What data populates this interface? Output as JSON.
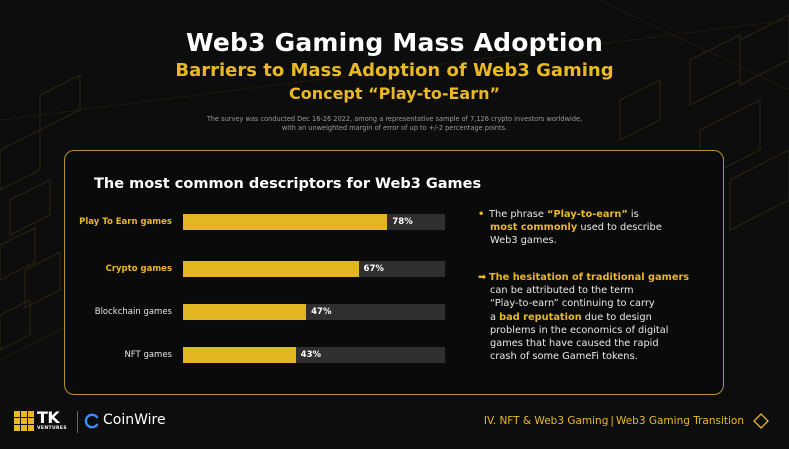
{
  "header": {
    "title": "Web3 Gaming Mass Adoption",
    "subtitle": "Barriers to Mass Adoption of Web3 Gaming",
    "subtitle2": "Concept “Play-to-Earn”",
    "survey_line1": "The survey was conducted Dec 16-26 2022, among a representative sample of 7,126 crypto investors worldwide,",
    "survey_line2": "with an unweighted margin of error of up to +/-2 percentage points."
  },
  "chart_data": {
    "type": "bar",
    "orientation": "horizontal",
    "title": "The most common descriptors for Web3 Games",
    "categories": [
      "Play To Earn games",
      "Crypto games",
      "Blockchain games",
      "NFT games"
    ],
    "values": [
      78,
      67,
      47,
      43
    ],
    "value_labels": [
      "78%",
      "67%",
      "47%",
      "43%"
    ],
    "highlighted": [
      true,
      true,
      false,
      false
    ],
    "unit": "%",
    "xlim": [
      0,
      100
    ],
    "grid": false,
    "colors": {
      "fill": "#e2b620",
      "track": "#2f2f2f"
    }
  },
  "notes": {
    "note1_bullet": "•",
    "note1_a": "The phrase ",
    "note1_b": "“Play-to-earn”",
    "note1_c": " is",
    "note1_d": "most commonly",
    "note1_e": " used to describe",
    "note1_f": "Web3 games.",
    "note2_arrow": "➡",
    "note2_a": "The hesitation of traditional gamers",
    "note2_b": "can be attributed to the term",
    "note2_c": "“Play-to-earn” continuing to carry",
    "note2_d": "a ",
    "note2_e": "bad reputation",
    "note2_f": " due to design",
    "note2_g": "problems in the economics of digital",
    "note2_h": "games that have caused the rapid",
    "note2_i": "crash of some GameFi tokens."
  },
  "footer": {
    "tk_name": "TK",
    "tk_sub": "VENTURES",
    "coinwire": "CoinWire",
    "section": "IV. NFT & Web3 Gaming",
    "separator": "|",
    "topic": "Web3 Gaming Transition"
  },
  "colors": {
    "accent": "#e8b923",
    "background": "#0d0d0d",
    "panel_border": "#b5922d"
  }
}
